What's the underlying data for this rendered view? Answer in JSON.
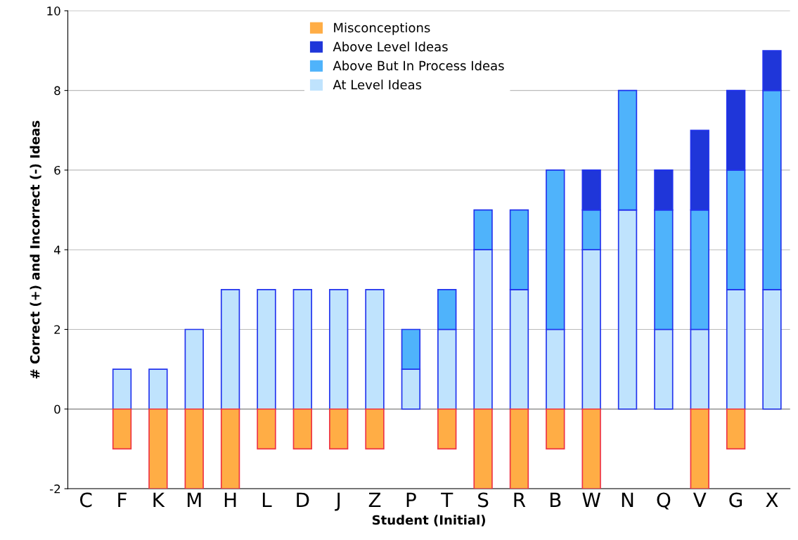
{
  "chart_data": {
    "type": "bar",
    "stacked": true,
    "xlabel": "Student (Initial)",
    "ylabel": "# Correct (+) and Incorrect (-) Ideas",
    "categories": [
      "C",
      "F",
      "K",
      "M",
      "H",
      "L",
      "D",
      "J",
      "Z",
      "P",
      "T",
      "S",
      "R",
      "B",
      "W",
      "N",
      "Q",
      "V",
      "G",
      "X"
    ],
    "series": [
      {
        "name": "At Level Ideas",
        "color": "#bfe3fd",
        "values": [
          null,
          1,
          1,
          2,
          3,
          3,
          3,
          3,
          3,
          1,
          2,
          4,
          3,
          2,
          4,
          5,
          2,
          2,
          3,
          3
        ]
      },
      {
        "name": "Above But In Process Ideas",
        "color": "#4fb3fb",
        "values": [
          null,
          null,
          null,
          null,
          null,
          null,
          null,
          null,
          null,
          1,
          1,
          1,
          2,
          4,
          1,
          3,
          3,
          3,
          3,
          5
        ]
      },
      {
        "name": "Above Level Ideas",
        "color": "#1f36d9",
        "values": [
          null,
          null,
          null,
          null,
          null,
          null,
          null,
          null,
          null,
          null,
          null,
          null,
          null,
          null,
          1,
          null,
          1,
          2,
          2,
          1
        ]
      },
      {
        "name": "Misconceptions",
        "color": "#ffad45",
        "values": [
          null,
          -1,
          -2,
          -2,
          -2,
          -1,
          -1,
          -1,
          -1,
          null,
          -1,
          -2,
          -2,
          -1,
          -2,
          null,
          null,
          -2,
          -1,
          null
        ]
      }
    ],
    "ylim": [
      -2,
      10
    ],
    "yticks": [
      -2,
      0,
      2,
      4,
      6,
      8,
      10
    ],
    "grid": "y",
    "legend": "top"
  }
}
